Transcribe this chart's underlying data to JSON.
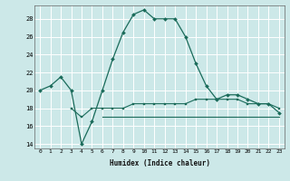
{
  "xlabel": "Humidex (Indice chaleur)",
  "x": [
    0,
    1,
    2,
    3,
    4,
    5,
    6,
    7,
    8,
    9,
    10,
    11,
    12,
    13,
    14,
    15,
    16,
    17,
    18,
    19,
    20,
    21,
    22,
    23
  ],
  "line_humidex": [
    20,
    20.5,
    21.5,
    20,
    14,
    16.5,
    20,
    23.5,
    26.5,
    28.5,
    29,
    28.0,
    28.0,
    28.0,
    26.0,
    23.0,
    20.5,
    19.0,
    19.5,
    19.5,
    19.0,
    18.5,
    18.5,
    17.5
  ],
  "line_mid": [
    null,
    null,
    null,
    18,
    17,
    18,
    18.0,
    18.0,
    18.0,
    18.5,
    18.5,
    18.5,
    18.5,
    18.5,
    18.5,
    19.0,
    19.0,
    19.0,
    19.0,
    19.0,
    18.5,
    18.5,
    18.5,
    18.0
  ],
  "line_low": [
    null,
    null,
    null,
    null,
    null,
    null,
    17.0,
    17.0,
    17.0,
    17.0,
    17.0,
    17.0,
    17.0,
    17.0,
    17.0,
    17.0,
    17.0,
    17.0,
    17.0,
    17.0,
    17.0,
    17.0,
    17.0,
    17.0
  ],
  "ylim": [
    13.5,
    29.5
  ],
  "xlim": [
    -0.5,
    23.5
  ],
  "yticks": [
    14,
    16,
    18,
    20,
    22,
    24,
    26,
    28
  ],
  "xticks": [
    0,
    1,
    2,
    3,
    4,
    5,
    6,
    7,
    8,
    9,
    10,
    11,
    12,
    13,
    14,
    15,
    16,
    17,
    18,
    19,
    20,
    21,
    22,
    23
  ],
  "bg_color": "#cce8e8",
  "grid_color": "#ffffff",
  "line_color": "#1a6b5a"
}
